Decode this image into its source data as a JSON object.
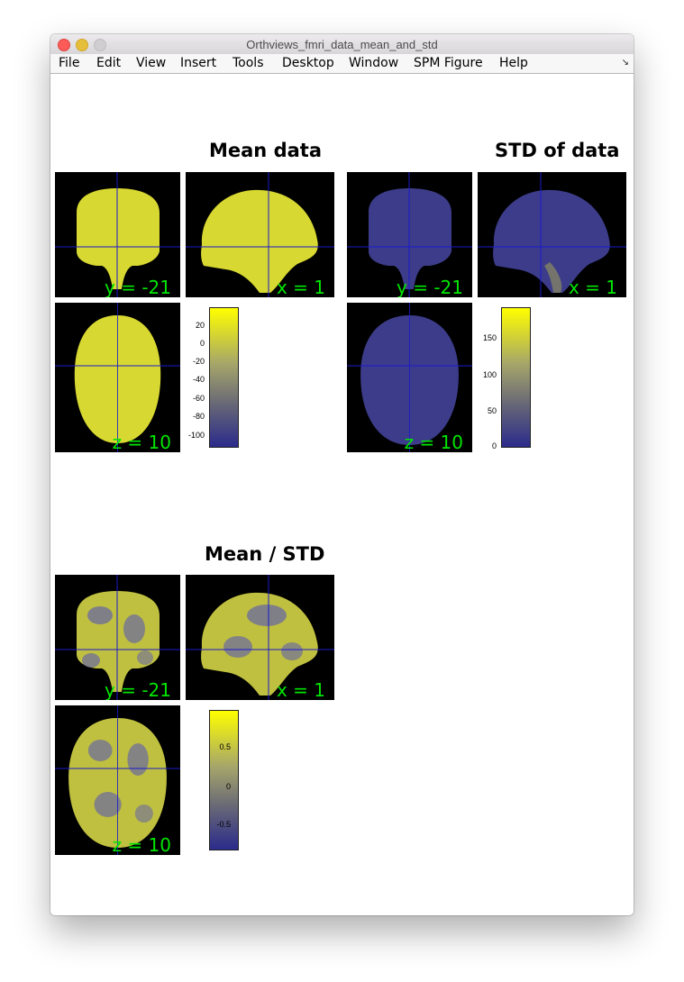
{
  "window": {
    "title": "Orthviews_fmri_data_mean_and_std",
    "menu": [
      "File",
      "Edit",
      "View",
      "Insert",
      "Tools",
      "Desktop",
      "Window",
      "SPM Figure",
      "Help"
    ],
    "dock_icon": "dock-arrow-icon"
  },
  "colors": {
    "mean_fill": "#d8d832",
    "std_fill": "#3c3c8a",
    "ratio_fill_a": "#c0c040",
    "ratio_fill_b": "#6a6aa0",
    "crosshair": "#1a1acc",
    "coordinate_text": "#00e600",
    "colorbar_low": "#2b2b8c",
    "colorbar_high": "#ffff00"
  },
  "panels": {
    "mean": {
      "title": "Mean data",
      "coronal_label": "y = -21",
      "sagittal_label": "x = 1",
      "axial_label": "z = 10",
      "colorbar_ticks": [
        "20",
        "0",
        "-20",
        "-40",
        "-60",
        "-80",
        "-100"
      ]
    },
    "std": {
      "title": "STD of data",
      "coronal_label": "y = -21",
      "sagittal_label": "x = 1",
      "axial_label": "z = 10",
      "colorbar_ticks": [
        "150",
        "100",
        "50",
        "0"
      ]
    },
    "ratio": {
      "title": "Mean / STD",
      "coronal_label": "y = -21",
      "sagittal_label": "x = 1",
      "axial_label": "z = 10",
      "colorbar_ticks": [
        "0.5",
        "0",
        "-0.5"
      ]
    }
  }
}
